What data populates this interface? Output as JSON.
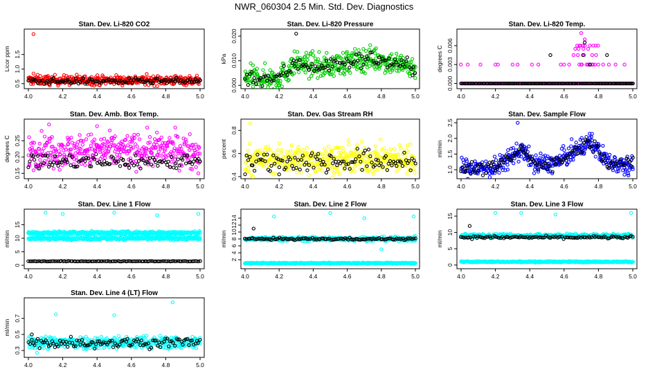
{
  "page": {
    "title": "NWR_060304  2.5 Min. Std. Dev. Diagnostics"
  },
  "chart_data": [
    {
      "type": "scatter",
      "title": "Stan. Dev. Li-820 CO2",
      "ylabel": "Licor ppm",
      "xlim": [
        4.0,
        5.0
      ],
      "ylim": [
        0.4,
        2.3
      ],
      "xticks": [
        "4.0",
        "4.2",
        "4.4",
        "4.6",
        "4.8",
        "5.0"
      ],
      "yticks": [
        "0.5",
        "1.0",
        "1.5"
      ],
      "series": [
        {
          "name": "primary",
          "color": "#ff0000",
          "center": 0.62,
          "spread": 0.08,
          "trend": "flat",
          "outliers": [
            [
              4.03,
              2.2
            ],
            [
              4.03,
              0.85
            ]
          ]
        },
        {
          "name": "reference",
          "color": "#000000",
          "center": 0.58,
          "spread": 0.05,
          "trend": "flat",
          "outliers": []
        }
      ]
    },
    {
      "type": "scatter",
      "title": "Stan. Dev. Li-820 Pressure",
      "ylabel": "kPa",
      "xlim": [
        4.0,
        5.0
      ],
      "ylim": [
        -0.0005,
        0.022
      ],
      "xticks": [
        "4.0",
        "4.2",
        "4.4",
        "4.6",
        "4.8",
        "5.0"
      ],
      "yticks": [
        "0.000",
        "0.010",
        "0.020"
      ],
      "series": [
        {
          "name": "primary",
          "color": "#00cc00",
          "center": 0.008,
          "spread": 0.003,
          "trend": "pressure",
          "outliers": []
        },
        {
          "name": "reference",
          "color": "#000000",
          "center": 0.007,
          "spread": 0.002,
          "trend": "pressure",
          "outliers": [
            [
              4.3,
              0.021
            ]
          ]
        }
      ]
    },
    {
      "type": "scatter",
      "title": "Stan. Dev. Li-820 Temp.",
      "ylabel": "degrees C",
      "xlim": [
        4.0,
        5.0
      ],
      "ylim": [
        -0.0005,
        0.0083
      ],
      "xticks": [
        "4.0",
        "4.2",
        "4.4",
        "4.6",
        "4.8",
        "5.0"
      ],
      "yticks": [
        "0.000",
        "0.003",
        "0.006"
      ],
      "series": [
        {
          "name": "primary",
          "color": "#ff00ff",
          "center": 0.0,
          "spread": 0.0,
          "trend": "quantized",
          "outliers": [
            [
              4.7,
              0.008
            ],
            [
              4.72,
              0.007
            ],
            [
              4.74,
              0.0055
            ],
            [
              4.68,
              0.0045
            ],
            [
              4.45,
              0.003
            ],
            [
              4.75,
              0.006
            ],
            [
              4.9,
              0.003
            ],
            [
              4.3,
              0.003
            ],
            [
              4.2,
              0.003
            ],
            [
              4.6,
              0.003
            ]
          ]
        },
        {
          "name": "reference",
          "color": "#000000",
          "center": 0.0,
          "spread": 0.0,
          "trend": "quantized",
          "outliers": [
            [
              4.52,
              0.0045
            ],
            [
              4.72,
              0.0065
            ],
            [
              4.71,
              0.0045
            ],
            [
              4.85,
              0.0045
            ],
            [
              4.75,
              0.003
            ]
          ]
        }
      ]
    },
    {
      "type": "scatter",
      "title": "Stan. Dev. Amb. Box Temp.",
      "ylabel": "degrees C",
      "xlim": [
        4.0,
        5.0
      ],
      "ylim": [
        0.14,
        0.31
      ],
      "xticks": [
        "4.0",
        "4.2",
        "4.4",
        "4.6",
        "4.8",
        "5.0"
      ],
      "yticks": [
        "0.15",
        "0.20",
        "0.25"
      ],
      "series": [
        {
          "name": "primary",
          "color": "#ff00ff",
          "center": 0.22,
          "spread": 0.025,
          "trend": "flat",
          "outliers": [
            [
              4.12,
              0.3
            ],
            [
              4.4,
              0.295
            ],
            [
              4.99,
              0.15
            ]
          ]
        },
        {
          "name": "reference",
          "color": "#000000",
          "center": 0.185,
          "spread": 0.012,
          "trend": "flat",
          "outliers": []
        }
      ]
    },
    {
      "type": "scatter",
      "title": "Stan. Dev. Gas Stream RH",
      "ylabel": "percent",
      "xlim": [
        4.0,
        5.0
      ],
      "ylim": [
        0.4,
        0.88
      ],
      "xticks": [
        "4.0",
        "4.2",
        "4.4",
        "4.6",
        "4.8",
        "5.0"
      ],
      "yticks": [
        "0.4",
        "0.6",
        "0.8"
      ],
      "series": [
        {
          "name": "primary",
          "color": "#ffff00",
          "center": 0.55,
          "spread": 0.06,
          "trend": "flat",
          "outliers": [
            [
              4.03,
              0.86
            ]
          ]
        },
        {
          "name": "reference",
          "color": "#000000",
          "center": 0.53,
          "spread": 0.05,
          "trend": "flat",
          "outliers": [
            [
              4.2,
              0.42
            ]
          ]
        }
      ]
    },
    {
      "type": "scatter",
      "title": "Stan. Dev. Sample Flow",
      "ylabel": "ml/min",
      "xlim": [
        4.0,
        5.0
      ],
      "ylim": [
        0.78,
        2.55
      ],
      "xticks": [
        "4.0",
        "4.2",
        "4.4",
        "4.6",
        "4.8",
        "5.0"
      ],
      "yticks": [
        "1.0",
        "1.5",
        "2.0",
        "2.5"
      ],
      "series": [
        {
          "name": "primary",
          "color": "#0000ff",
          "center": 1.3,
          "spread": 0.15,
          "trend": "flow",
          "outliers": [
            [
              4.33,
              2.5
            ]
          ]
        },
        {
          "name": "reference",
          "color": "#000000",
          "center": 1.25,
          "spread": 0.1,
          "trend": "flow",
          "outliers": []
        }
      ]
    },
    {
      "type": "scatter",
      "title": "Stan. Dev. Line 1 Flow",
      "ylabel": "ml/min",
      "xlim": [
        4.0,
        5.0
      ],
      "ylim": [
        -0.5,
        20.0
      ],
      "xticks": [
        "4.0",
        "4.2",
        "4.4",
        "4.6",
        "4.8",
        "5.0"
      ],
      "yticks": [
        "0",
        "5",
        "10",
        "15"
      ],
      "series": [
        {
          "name": "primary",
          "color": "#00ffff",
          "center": 12.0,
          "spread": 0.3,
          "trend": "flat",
          "outliers": [
            [
              4.2,
              19.0
            ],
            [
              4.5,
              19.5
            ],
            [
              4.75,
              18.5
            ],
            [
              4.99,
              19.0
            ],
            [
              4.1,
              19.5
            ]
          ]
        },
        {
          "name": "primary_lower",
          "color": "#00ffff",
          "center": 10.0,
          "spread": 0.3,
          "trend": "flat",
          "outliers": []
        },
        {
          "name": "reference",
          "color": "#000000",
          "center": 1.5,
          "spread": 0.05,
          "trend": "flat",
          "outliers": []
        }
      ]
    },
    {
      "type": "scatter",
      "title": "Stan. Dev. Line 2 Flow",
      "ylabel": "ml/min",
      "xlim": [
        4.0,
        5.0
      ],
      "ylim": [
        0.0,
        16.0
      ],
      "xticks": [
        "4.0",
        "4.2",
        "4.4",
        "4.6",
        "4.8",
        "5.0"
      ],
      "yticks": [
        "2",
        "4",
        "6",
        "8",
        "10",
        "12",
        "14"
      ],
      "series": [
        {
          "name": "primary",
          "color": "#00ffff",
          "center": 8.0,
          "spread": 0.3,
          "trend": "flat",
          "outliers": [
            [
              4.17,
              14.5
            ],
            [
              4.5,
              15.5
            ],
            [
              4.99,
              14.5
            ],
            [
              4.7,
              14.0
            ],
            [
              4.8,
              5.0
            ]
          ]
        },
        {
          "name": "primary_lower",
          "color": "#00ffff",
          "center": 1.0,
          "spread": 0.1,
          "trend": "flat",
          "outliers": []
        },
        {
          "name": "reference",
          "color": "#000000",
          "center": 8.0,
          "spread": 0.15,
          "trend": "flat",
          "outliers": [
            [
              4.05,
              11.0
            ]
          ]
        }
      ]
    },
    {
      "type": "scatter",
      "title": "Stan. Dev. Line 3 Flow",
      "ylabel": "ml/min",
      "xlim": [
        4.0,
        5.0
      ],
      "ylim": [
        -0.5,
        16.5
      ],
      "xticks": [
        "4.0",
        "4.2",
        "4.4",
        "4.6",
        "4.8",
        "5.0"
      ],
      "yticks": [
        "0",
        "5",
        "10",
        "15"
      ],
      "series": [
        {
          "name": "primary",
          "color": "#00ffff",
          "center": 9.0,
          "spread": 0.3,
          "trend": "flat",
          "outliers": [
            [
              4.2,
              16.0
            ],
            [
              4.55,
              15.5
            ],
            [
              4.99,
              16.0
            ],
            [
              4.35,
              16.0
            ]
          ]
        },
        {
          "name": "primary_lower",
          "color": "#00ffff",
          "center": 1.0,
          "spread": 0.1,
          "trend": "flat",
          "outliers": []
        },
        {
          "name": "reference",
          "color": "#000000",
          "center": 8.5,
          "spread": 0.2,
          "trend": "flat",
          "outliers": [
            [
              4.05,
              12.0
            ]
          ]
        }
      ]
    },
    {
      "type": "scatter",
      "title": "Stan. Dev. Line 4 (LT) Flow",
      "ylabel": "ml/min",
      "xlim": [
        4.0,
        5.0
      ],
      "ylim": [
        0.24,
        0.93
      ],
      "xticks": [
        "4.0",
        "4.2",
        "4.4",
        "4.6",
        "4.8",
        "5.0"
      ],
      "yticks": [
        "0.3",
        "0.5",
        "0.7"
      ],
      "series": [
        {
          "name": "primary",
          "color": "#00ffff",
          "center": 0.4,
          "spread": 0.04,
          "trend": "flat",
          "outliers": [
            [
              4.84,
              0.9
            ],
            [
              4.16,
              0.75
            ],
            [
              4.5,
              0.74
            ],
            [
              4.05,
              0.27
            ]
          ]
        },
        {
          "name": "reference",
          "color": "#000000",
          "center": 0.4,
          "spread": 0.035,
          "trend": "flat",
          "outliers": [
            [
              4.02,
              0.5
            ]
          ]
        }
      ]
    }
  ]
}
